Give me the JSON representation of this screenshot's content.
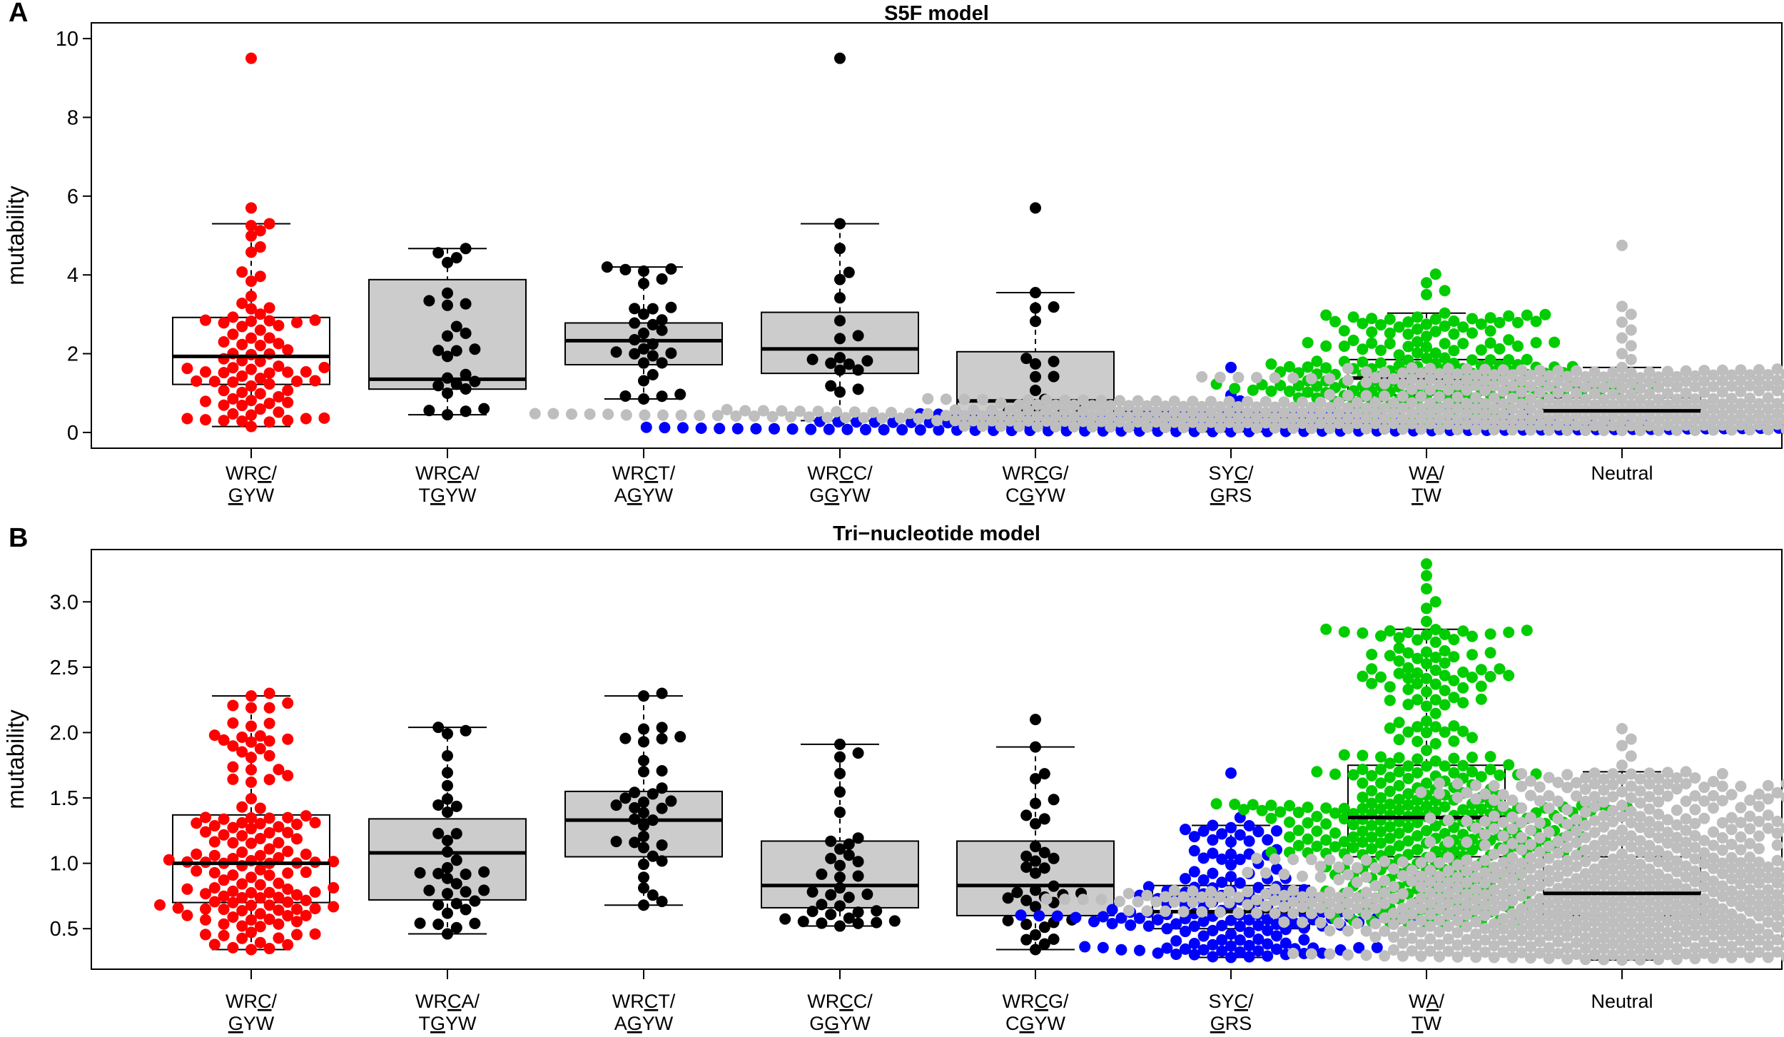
{
  "chart_data": [
    {
      "type": "box+beeswarm",
      "panel": "A",
      "title": "S5F model",
      "ylabel": "mutability",
      "ylim": [
        -0.4,
        10.4
      ],
      "yticks": [
        0,
        2,
        4,
        6,
        8,
        10
      ],
      "ytick_labels": [
        "0",
        "2",
        "4",
        "6",
        "8",
        "10"
      ],
      "groups": [
        {
          "l1": [
            "WR",
            "C",
            "/"
          ],
          "l2": [
            "",
            "G",
            "YW"
          ],
          "color": "#FF0000",
          "box_fill": "#FFFFFF",
          "n": 80,
          "whisker": [
            0.15,
            5.3
          ],
          "q1": 1.22,
          "median": 1.93,
          "q3": 2.92,
          "outliers": [
            9.5,
            5.7
          ]
        },
        {
          "l1": [
            "WR",
            "C",
            "A/"
          ],
          "l2": [
            "T",
            "G",
            "YW"
          ],
          "color": "#000000",
          "box_fill": "#CCCCCC",
          "n": 24,
          "whisker": [
            0.45,
            4.67
          ],
          "q1": 1.1,
          "median": 1.35,
          "q3": 3.88,
          "outliers": []
        },
        {
          "l1": [
            "WR",
            "C",
            "T/"
          ],
          "l2": [
            "A",
            "G",
            "YW"
          ],
          "color": "#000000",
          "box_fill": "#CCCCCC",
          "n": 28,
          "whisker": [
            0.85,
            4.2
          ],
          "q1": 1.72,
          "median": 2.33,
          "q3": 2.78,
          "outliers": []
        },
        {
          "l1": [
            "WR",
            "C",
            "C/"
          ],
          "l2": [
            "G",
            "G",
            "YW"
          ],
          "color": "#000000",
          "box_fill": "#CCCCCC",
          "n": 18,
          "whisker": [
            0.3,
            5.3
          ],
          "q1": 1.5,
          "median": 2.12,
          "q3": 3.05,
          "outliers": [
            9.5
          ]
        },
        {
          "l1": [
            "WR",
            "C",
            "G/"
          ],
          "l2": [
            "C",
            "G",
            "YW"
          ],
          "color": "#000000",
          "box_fill": "#CCCCCC",
          "n": 16,
          "whisker": [
            0.15,
            3.55
          ],
          "q1": 0.42,
          "median": 0.8,
          "q3": 2.05,
          "outliers": [
            5.7
          ]
        },
        {
          "l1": [
            "SY",
            "C",
            "/"
          ],
          "l2": [
            "",
            "G",
            "RS"
          ],
          "color": "#0000FF",
          "box_fill": "#FFFFFF",
          "n": 160,
          "whisker": [
            0.02,
            0.55
          ],
          "q1": 0.08,
          "median": 0.18,
          "q3": 0.28,
          "outliers": [
            1.65,
            0.95,
            0.8
          ]
        },
        {
          "l1": [
            "W",
            "A",
            "/"
          ],
          "l2": [
            "",
            "T",
            "W"
          ],
          "color": "#00CD00",
          "box_fill": "#FFFFFF",
          "n": 200,
          "whisker": [
            0.28,
            3.03
          ],
          "q1": 0.95,
          "median": 1.38,
          "q3": 1.85,
          "outliers": [
            4.02,
            3.8,
            3.6,
            3.5
          ]
        },
        {
          "l1": [
            "Neutral",
            "",
            ""
          ],
          "l2": [
            "",
            "",
            ""
          ],
          "color": "#BEBEBE",
          "box_fill": "#FFFFFF",
          "n": 700,
          "whisker": [
            0.05,
            1.65
          ],
          "q1": 0.35,
          "median": 0.55,
          "q3": 0.88,
          "outliers": [
            4.75,
            3.2,
            3.0,
            2.8,
            2.6,
            2.4,
            2.2,
            2.0,
            1.85
          ]
        }
      ]
    },
    {
      "type": "box+beeswarm",
      "panel": "B",
      "title": "Tri−nucleotide model",
      "ylabel": "mutability",
      "ylim": [
        0.19,
        3.4
      ],
      "yticks": [
        0.5,
        1.0,
        1.5,
        2.0,
        2.5,
        3.0
      ],
      "ytick_labels": [
        "0.5",
        "1.0",
        "1.5",
        "2.0",
        "2.5",
        "3.0"
      ],
      "groups": [
        {
          "l1": [
            "WR",
            "C",
            "/"
          ],
          "l2": [
            "",
            "G",
            "YW"
          ],
          "color": "#FF0000",
          "box_fill": "#FFFFFF",
          "n": 140,
          "whisker": [
            0.34,
            2.28
          ],
          "q1": 0.7,
          "median": 1.0,
          "q3": 1.37,
          "outliers": [
            2.3
          ]
        },
        {
          "l1": [
            "WR",
            "C",
            "A/"
          ],
          "l2": [
            "T",
            "G",
            "YW"
          ],
          "color": "#000000",
          "box_fill": "#CCCCCC",
          "n": 34,
          "whisker": [
            0.46,
            2.04
          ],
          "q1": 0.72,
          "median": 1.08,
          "q3": 1.34,
          "outliers": []
        },
        {
          "l1": [
            "WR",
            "C",
            "T/"
          ],
          "l2": [
            "A",
            "G",
            "YW"
          ],
          "color": "#000000",
          "box_fill": "#CCCCCC",
          "n": 34,
          "whisker": [
            0.68,
            2.28
          ],
          "q1": 1.05,
          "median": 1.33,
          "q3": 1.55,
          "outliers": [
            2.3
          ]
        },
        {
          "l1": [
            "WR",
            "C",
            "C/"
          ],
          "l2": [
            "G",
            "G",
            "YW"
          ],
          "color": "#000000",
          "box_fill": "#CCCCCC",
          "n": 34,
          "whisker": [
            0.52,
            1.91
          ],
          "q1": 0.66,
          "median": 0.83,
          "q3": 1.17,
          "outliers": []
        },
        {
          "l1": [
            "WR",
            "C",
            "G/"
          ],
          "l2": [
            "C",
            "G",
            "YW"
          ],
          "color": "#000000",
          "box_fill": "#CCCCCC",
          "n": 34,
          "whisker": [
            0.34,
            1.89
          ],
          "q1": 0.6,
          "median": 0.83,
          "q3": 1.17,
          "outliers": [
            2.1
          ]
        },
        {
          "l1": [
            "SY",
            "C",
            "/"
          ],
          "l2": [
            "",
            "G",
            "RS"
          ],
          "color": "#0000FF",
          "box_fill": "#FFFFFF",
          "n": 160,
          "whisker": [
            0.28,
            1.29
          ],
          "q1": 0.5,
          "median": 0.63,
          "q3": 0.83,
          "outliers": [
            1.69,
            1.35
          ]
        },
        {
          "l1": [
            "W",
            "A",
            "/"
          ],
          "l2": [
            "",
            "T",
            "W"
          ],
          "color": "#00CD00",
          "box_fill": "#FFFFFF",
          "n": 380,
          "whisker": [
            0.54,
            2.79
          ],
          "q1": 1.05,
          "median": 1.35,
          "q3": 1.75,
          "outliers": [
            3.29,
            3.2,
            3.1,
            3.0,
            2.95,
            2.85
          ]
        },
        {
          "l1": [
            "Neutral",
            "",
            ""
          ],
          "l2": [
            "",
            "",
            ""
          ],
          "color": "#BEBEBE",
          "box_fill": "#FFFFFF",
          "n": 900,
          "whisker": [
            0.26,
            1.7
          ],
          "q1": 0.6,
          "median": 0.77,
          "q3": 1.05,
          "outliers": [
            2.03,
            1.95,
            1.9,
            1.82,
            1.75
          ]
        }
      ]
    }
  ]
}
